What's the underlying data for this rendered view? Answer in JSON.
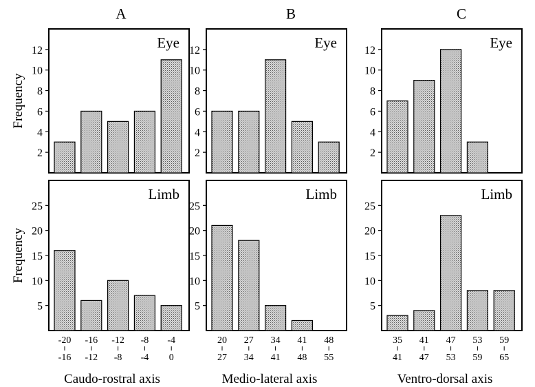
{
  "chart_data": [
    {
      "type": "bar",
      "column": "A",
      "row": "eye",
      "panel_label": "Eye",
      "ylabel": "Frequency",
      "xlabel": "",
      "ylim": [
        0,
        14
      ],
      "yticks": [
        2,
        4,
        6,
        8,
        10,
        12
      ],
      "values": [
        3,
        6,
        5,
        6,
        11
      ]
    },
    {
      "type": "bar",
      "column": "B",
      "row": "eye",
      "panel_label": "Eye",
      "ylabel": "",
      "xlabel": "",
      "ylim": [
        0,
        14
      ],
      "yticks": [
        2,
        4,
        6,
        8,
        10,
        12
      ],
      "values": [
        6,
        6,
        11,
        5,
        3
      ]
    },
    {
      "type": "bar",
      "column": "C",
      "row": "eye",
      "panel_label": "Eye",
      "ylabel": "",
      "xlabel": "",
      "ylim": [
        0,
        14
      ],
      "yticks": [
        2,
        4,
        6,
        8,
        10,
        12
      ],
      "values": [
        7,
        9,
        12,
        3,
        0
      ]
    },
    {
      "type": "bar",
      "column": "A",
      "row": "limb",
      "panel_label": "Limb",
      "ylabel": "Frequency",
      "xlabel": "Caudo-rostral axis",
      "ylim": [
        0,
        30
      ],
      "yticks": [
        5,
        10,
        15,
        20,
        25
      ],
      "categories": [
        [
          "-20",
          "-16"
        ],
        [
          "-16",
          "-12"
        ],
        [
          "-12",
          "-8"
        ],
        [
          "-8",
          "-4"
        ],
        [
          "-4",
          "0"
        ]
      ],
      "values": [
        16,
        6,
        10,
        7,
        5
      ]
    },
    {
      "type": "bar",
      "column": "B",
      "row": "limb",
      "panel_label": "Limb",
      "ylabel": "",
      "xlabel": "Medio-lateral axis",
      "ylim": [
        0,
        30
      ],
      "yticks": [
        5,
        10,
        15,
        20,
        25
      ],
      "categories": [
        [
          "20",
          "27"
        ],
        [
          "27",
          "34"
        ],
        [
          "34",
          "41"
        ],
        [
          "41",
          "48"
        ],
        [
          "48",
          "55"
        ]
      ],
      "values": [
        21,
        18,
        5,
        2,
        0
      ]
    },
    {
      "type": "bar",
      "column": "C",
      "row": "limb",
      "panel_label": "Limb",
      "ylabel": "",
      "xlabel": "Ventro-dorsal axis",
      "ylim": [
        0,
        30
      ],
      "yticks": [
        5,
        10,
        15,
        20,
        25
      ],
      "categories": [
        [
          "35",
          "41"
        ],
        [
          "41",
          "47"
        ],
        [
          "47",
          "53"
        ],
        [
          "53",
          "59"
        ],
        [
          "59",
          "65"
        ]
      ],
      "values": [
        3,
        4,
        23,
        8,
        8
      ]
    }
  ]
}
